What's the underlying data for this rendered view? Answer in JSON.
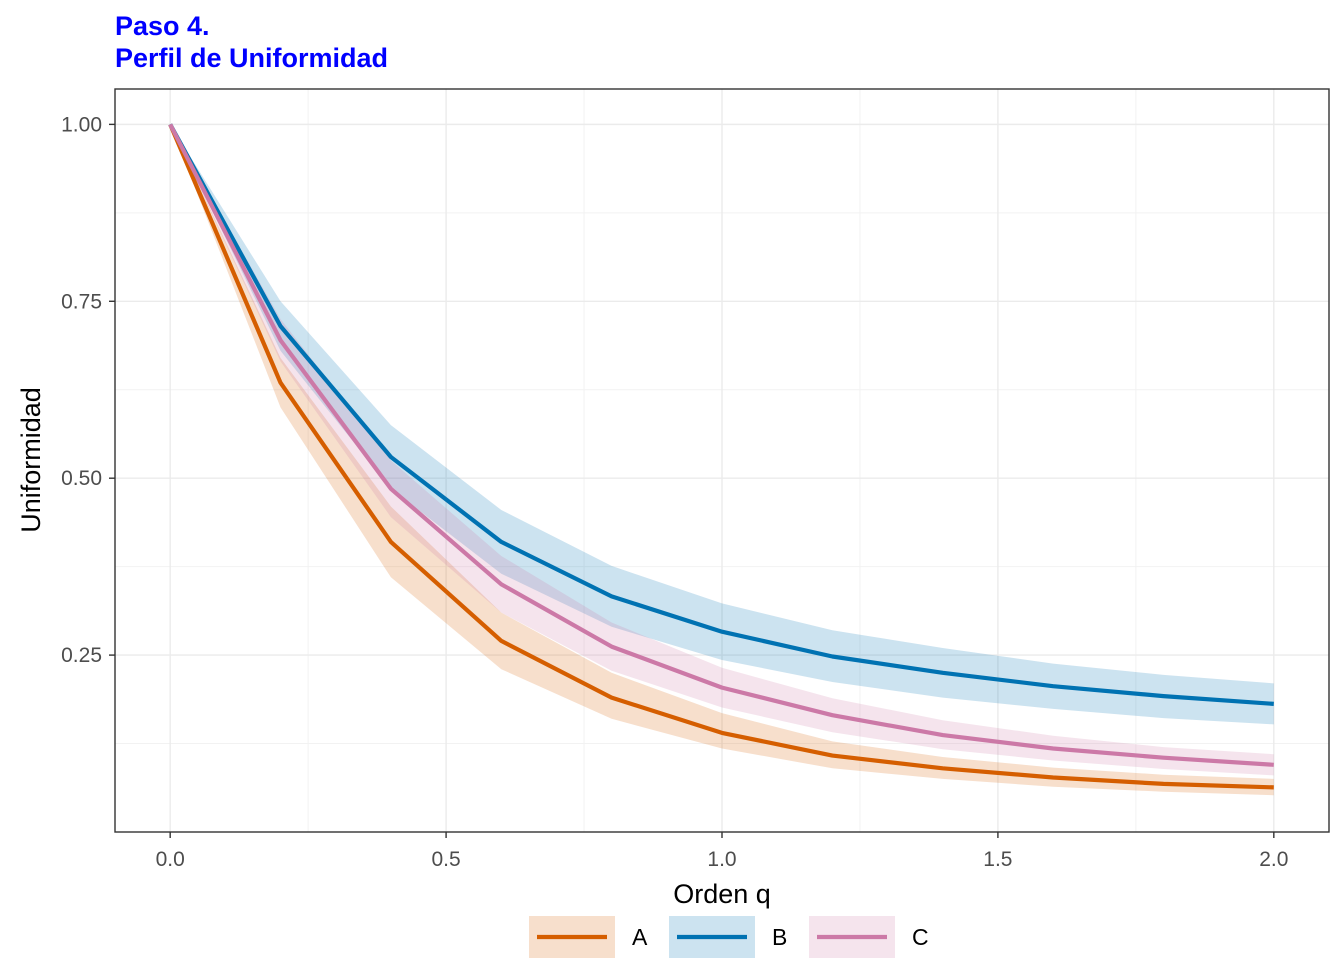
{
  "chart_data": {
    "type": "line",
    "title_line1": "Paso 4.",
    "title_line2": "Perfil de Uniformidad",
    "xlabel": "Orden q",
    "ylabel": "Uniformidad",
    "xlim": [
      -0.1,
      2.1
    ],
    "ylim": [
      0.0,
      1.05
    ],
    "x_ticks": [
      0.0,
      0.5,
      1.0,
      1.5,
      2.0
    ],
    "x_tick_labels": [
      "0.0",
      "0.5",
      "1.0",
      "1.5",
      "2.0"
    ],
    "y_ticks": [
      0.25,
      0.5,
      0.75,
      1.0
    ],
    "y_tick_labels": [
      "0.25",
      "0.50",
      "0.75",
      "1.00"
    ],
    "grid": true,
    "legend_position": "bottom",
    "x": [
      0.0,
      0.2,
      0.4,
      0.6,
      0.8,
      1.0,
      1.2,
      1.4,
      1.6,
      1.8,
      2.0
    ],
    "series": [
      {
        "name": "A",
        "color": "#D55E00",
        "fill": "#F6D6C1",
        "values": [
          1.0,
          0.635,
          0.41,
          0.27,
          0.19,
          0.14,
          0.108,
          0.09,
          0.077,
          0.068,
          0.063
        ],
        "lower": [
          1.0,
          0.6,
          0.36,
          0.23,
          0.16,
          0.118,
          0.09,
          0.075,
          0.064,
          0.057,
          0.052
        ],
        "upper": [
          1.0,
          0.67,
          0.46,
          0.31,
          0.225,
          0.168,
          0.128,
          0.106,
          0.091,
          0.081,
          0.075
        ]
      },
      {
        "name": "B",
        "color": "#0072B2",
        "fill": "#C9E2EF",
        "values": [
          1.0,
          0.715,
          0.53,
          0.41,
          0.333,
          0.283,
          0.248,
          0.225,
          0.206,
          0.192,
          0.181
        ],
        "lower": [
          1.0,
          0.68,
          0.485,
          0.365,
          0.29,
          0.243,
          0.212,
          0.19,
          0.174,
          0.161,
          0.152
        ],
        "upper": [
          1.0,
          0.75,
          0.575,
          0.455,
          0.376,
          0.323,
          0.285,
          0.26,
          0.238,
          0.222,
          0.21
        ]
      },
      {
        "name": "C",
        "color": "#CC79A7",
        "fill": "#F5E2EC",
        "values": [
          1.0,
          0.695,
          0.485,
          0.35,
          0.262,
          0.204,
          0.165,
          0.137,
          0.118,
          0.105,
          0.095
        ],
        "lower": [
          1.0,
          0.665,
          0.445,
          0.31,
          0.228,
          0.176,
          0.141,
          0.117,
          0.101,
          0.089,
          0.08
        ],
        "upper": [
          1.0,
          0.725,
          0.525,
          0.39,
          0.296,
          0.232,
          0.189,
          0.158,
          0.136,
          0.12,
          0.11
        ]
      }
    ]
  }
}
